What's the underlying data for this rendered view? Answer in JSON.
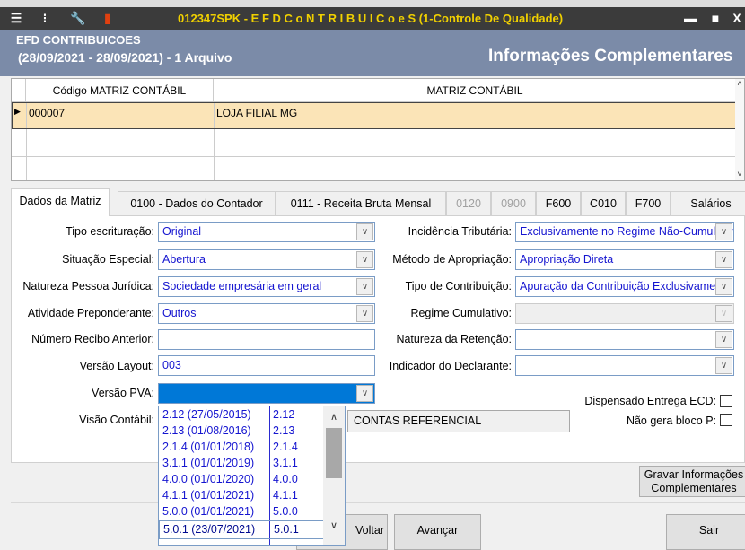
{
  "window": {
    "title": "012347SPK - E F D  C o N T R I B U I C o e S (1-Controle De Qualidade)",
    "icons": [
      "menu-icon",
      "traffic-light-icon",
      "wrench-icon",
      "books-icon"
    ],
    "controls": {
      "minimize": "▬",
      "maximize": "■",
      "close": "X"
    }
  },
  "header": {
    "app": "EFD CONTRIBUICOES",
    "period": "(28/09/2021 - 28/09/2021) - 1 Arquivo",
    "section": "Informações Complementares"
  },
  "grid": {
    "columns": [
      "Código MATRIZ CONTÁBIL",
      "MATRIZ CONTÁBIL"
    ],
    "rows": [
      {
        "codigo": "000007",
        "matriz": "LOJA FILIAL MG"
      }
    ]
  },
  "tabs": [
    {
      "label": "Dados da Matriz",
      "active": true
    },
    {
      "label": "0100 - Dados do Contador"
    },
    {
      "label": "0111 - Receita Bruta Mensal"
    },
    {
      "label": "0120",
      "disabled": true
    },
    {
      "label": "0900",
      "disabled": true
    },
    {
      "label": "F600"
    },
    {
      "label": "C010"
    },
    {
      "label": "F700"
    },
    {
      "label": "Salários"
    }
  ],
  "form": {
    "left": [
      {
        "label": "Tipo escrituração:",
        "value": "Original"
      },
      {
        "label": "Situação Especial:",
        "value": "Abertura"
      },
      {
        "label": "Natureza Pessoa Jurídica:",
        "value": "Sociedade empresária em geral"
      },
      {
        "label": "Atividade Preponderante:",
        "value": "Outros"
      },
      {
        "label": "Número Recibo Anterior:",
        "value": ""
      },
      {
        "label": "Versão Layout:",
        "value": "003"
      },
      {
        "label": "Versão PVA:",
        "value": ""
      },
      {
        "label": "Visão Contábil:",
        "value": "CONTAS REFERENCIAL"
      }
    ],
    "right": [
      {
        "label": "Incidência Tributária:",
        "value": "Exclusivamente no Regime Não-Cumulativo"
      },
      {
        "label": "Método de Apropriação:",
        "value": "Apropriação Direta"
      },
      {
        "label": "Tipo de Contribuição:",
        "value": "Apuração da Contribuição Exclusivamente"
      },
      {
        "label": "Regime Cumulativo:",
        "value": ""
      },
      {
        "label": "Natureza da Retenção:",
        "value": ""
      },
      {
        "label": "Indicador do Declarante:",
        "value": ""
      }
    ],
    "checks": [
      {
        "label": "Dispensado Entrega ECD:",
        "checked": false
      },
      {
        "label": "Não gera bloco P:",
        "checked": false
      }
    ]
  },
  "pva_options": [
    {
      "label": "2.12 (27/05/2015)",
      "code": "2.12"
    },
    {
      "label": "2.13 (01/08/2016)",
      "code": "2.13"
    },
    {
      "label": "2.1.4 (01/01/2018)",
      "code": "2.1.4"
    },
    {
      "label": "3.1.1 (01/01/2019)",
      "code": "3.1.1"
    },
    {
      "label": "4.0.0 (01/01/2020)",
      "code": "4.0.0"
    },
    {
      "label": "4.1.1 (01/01/2021)",
      "code": "4.1.1"
    },
    {
      "label": "5.0.0 (01/01/2021)",
      "code": "5.0.0"
    },
    {
      "label": "5.0.1 (23/07/2021)",
      "code": "5.0.1"
    }
  ],
  "buttons": {
    "gravar_line1": "Gravar Informações",
    "gravar_line2": "Complementares",
    "voltar": "Voltar",
    "avancar": "Avançar",
    "sair": "Sair"
  },
  "colors": {
    "title_bg": "#3b3b3b",
    "title_text": "#f0d000",
    "header_bg": "#7b8ba8",
    "selected_row": "#fbe4b7",
    "selection": "#0078d7",
    "value_text": "#1515d0"
  }
}
